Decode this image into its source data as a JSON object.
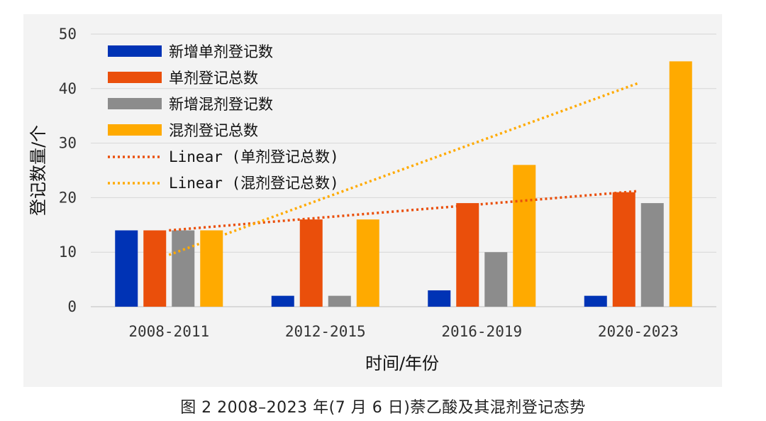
{
  "chart_data": {
    "type": "bar",
    "categories": [
      "2008-2011",
      "2012-2015",
      "2016-2019",
      "2020-2023"
    ],
    "series": [
      {
        "name": "新增单剂登记数",
        "values": [
          14,
          2,
          3,
          2
        ],
        "color": "#0033b5"
      },
      {
        "name": "单剂登记总数",
        "values": [
          14,
          16,
          19,
          21
        ],
        "color": "#ea4f0b"
      },
      {
        "name": "新增混剂登记数",
        "values": [
          14,
          2,
          10,
          19
        ],
        "color": "#8c8c8c"
      },
      {
        "name": "混剂登记总数",
        "values": [
          14,
          16,
          26,
          45
        ],
        "color": "#ffaa00"
      }
    ],
    "trendlines": [
      {
        "name": "Linear (单剂登记总数)",
        "start": 14,
        "end": 21.2,
        "color": "#ea4f0b"
      },
      {
        "name": "Linear (混剂登记总数)",
        "start": 9.5,
        "end": 41,
        "color": "#ffaa00"
      }
    ],
    "ylabel": "登记数量/个",
    "xlabel": "时间/年份",
    "ylim": [
      0,
      50
    ],
    "yticks": [
      0,
      10,
      20,
      30,
      40,
      50
    ],
    "grid": true,
    "legend_position": "top-left"
  },
  "caption": "图 2  2008–2023 年(7 月 6 日)萘乙酸及其混剂登记态势"
}
